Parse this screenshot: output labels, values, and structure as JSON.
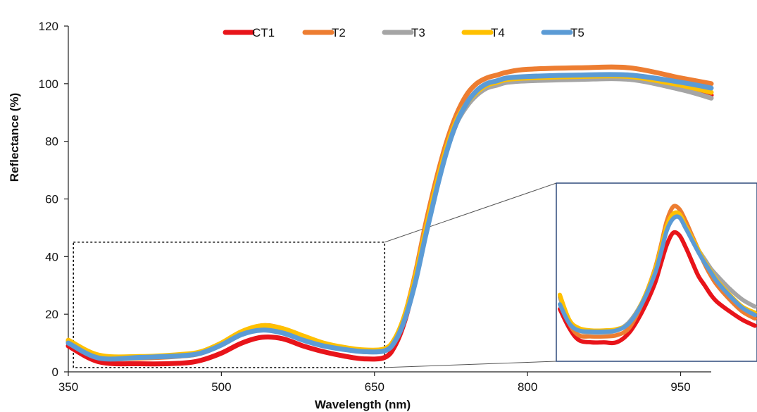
{
  "chart_data": {
    "type": "line",
    "xlabel": "Wavelength (nm)",
    "ylabel": "Reflectance (%)",
    "xlim": [
      350,
      980
    ],
    "ylim": [
      0,
      120
    ],
    "xticks": [
      350,
      500,
      650,
      800,
      950
    ],
    "yticks": [
      0,
      20,
      40,
      60,
      80,
      100,
      120
    ],
    "legend_position": "top",
    "grid": false,
    "x": [
      350,
      380,
      420,
      460,
      480,
      500,
      520,
      540,
      560,
      580,
      600,
      620,
      640,
      660,
      670,
      680,
      690,
      700,
      710,
      720,
      730,
      740,
      750,
      760,
      770,
      780,
      800,
      850,
      900,
      950,
      980
    ],
    "series": [
      {
        "name": "CT1",
        "color": "#e8141a",
        "values": [
          9,
          3.5,
          2.8,
          3,
          4,
          6.5,
          10,
          12,
          11.5,
          9,
          7,
          5.5,
          4.5,
          5,
          9,
          18,
          32,
          48,
          63,
          76,
          86,
          93,
          97,
          99,
          100,
          101,
          102,
          102.5,
          102.5,
          99,
          96
        ]
      },
      {
        "name": "T2",
        "color": "#ed7d31",
        "values": [
          10.5,
          5,
          4.8,
          5.5,
          6.5,
          9.5,
          13.5,
          16,
          15,
          12,
          9.5,
          8,
          7,
          7.5,
          11,
          20,
          34,
          51,
          66,
          79,
          89,
          96,
          100,
          102,
          103,
          104,
          105,
          105.5,
          105.5,
          102,
          100
        ]
      },
      {
        "name": "T3",
        "color": "#a5a5a5",
        "values": [
          10.5,
          5.2,
          5.2,
          5.8,
          6.8,
          9.5,
          13,
          15,
          14,
          11.5,
          9.5,
          8.2,
          7.4,
          7.8,
          11,
          19,
          32,
          48,
          63,
          76,
          86,
          92,
          96,
          98.5,
          99.5,
          100.5,
          101,
          101.5,
          101.5,
          98,
          95
        ]
      },
      {
        "name": "T4",
        "color": "#ffc000",
        "values": [
          11,
          5.8,
          5.3,
          6,
          7,
          10,
          14,
          16,
          15,
          12.5,
          10,
          8.5,
          7.6,
          8,
          11.5,
          20,
          33,
          49,
          64,
          77,
          87,
          93,
          97,
          99.5,
          100.5,
          101.5,
          102,
          102.5,
          102.5,
          99.5,
          97
        ]
      },
      {
        "name": "T5",
        "color": "#5b9bd5",
        "values": [
          10,
          4.8,
          5,
          5.6,
          6.5,
          9.3,
          13,
          14.5,
          13.5,
          11,
          9,
          7.8,
          7,
          7.3,
          10.5,
          18.5,
          31,
          47,
          62,
          75.5,
          86,
          93,
          97.5,
          100,
          101,
          102,
          102.5,
          103,
          103,
          100.5,
          98.5
        ]
      }
    ],
    "inset": {
      "zoom_region": {
        "x": [
          355,
          660
        ],
        "y": [
          1.5,
          45
        ]
      },
      "x": [
        350,
        365,
        380,
        400,
        420,
        440,
        460,
        480,
        500,
        510,
        520,
        530,
        540,
        550,
        560,
        570,
        580,
        590,
        600,
        620,
        640,
        660
      ],
      "series": [
        {
          "name": "CT1",
          "values": [
            3.8,
            2.2,
            1.2,
            1.0,
            1.0,
            1.0,
            1.8,
            3.5,
            5.8,
            7.5,
            9.2,
            10.2,
            10.0,
            9.0,
            7.8,
            6.6,
            5.8,
            5.0,
            4.4,
            3.6,
            2.9,
            2.4
          ]
        },
        {
          "name": "T2",
          "values": [
            4.8,
            2.6,
            1.6,
            1.5,
            1.5,
            1.6,
            2.2,
            4.2,
            7.0,
            9.0,
            11.2,
            12.4,
            12.2,
            11.2,
            10.0,
            8.8,
            7.6,
            6.6,
            5.8,
            4.6,
            3.6,
            3.0
          ]
        },
        {
          "name": "T3",
          "values": [
            4.8,
            2.8,
            2.0,
            1.8,
            1.8,
            2.0,
            2.7,
            4.3,
            6.8,
            8.5,
            10.5,
            11.6,
            11.6,
            10.8,
            9.8,
            8.8,
            8.0,
            7.2,
            6.6,
            5.5,
            4.6,
            4.0
          ]
        },
        {
          "name": "T4",
          "values": [
            5.0,
            2.9,
            2.2,
            2.0,
            2.0,
            2.1,
            2.6,
            4.3,
            6.9,
            8.8,
            10.8,
            11.8,
            11.8,
            10.8,
            9.8,
            8.8,
            7.8,
            7.0,
            6.2,
            5.0,
            4.0,
            3.5
          ]
        },
        {
          "name": "T5",
          "values": [
            4.2,
            2.6,
            2.0,
            1.9,
            1.9,
            2.0,
            2.6,
            4.2,
            6.6,
            8.4,
            10.4,
            11.4,
            11.5,
            10.6,
            9.6,
            8.6,
            7.7,
            6.9,
            6.1,
            4.9,
            3.9,
            3.3
          ]
        }
      ]
    }
  }
}
